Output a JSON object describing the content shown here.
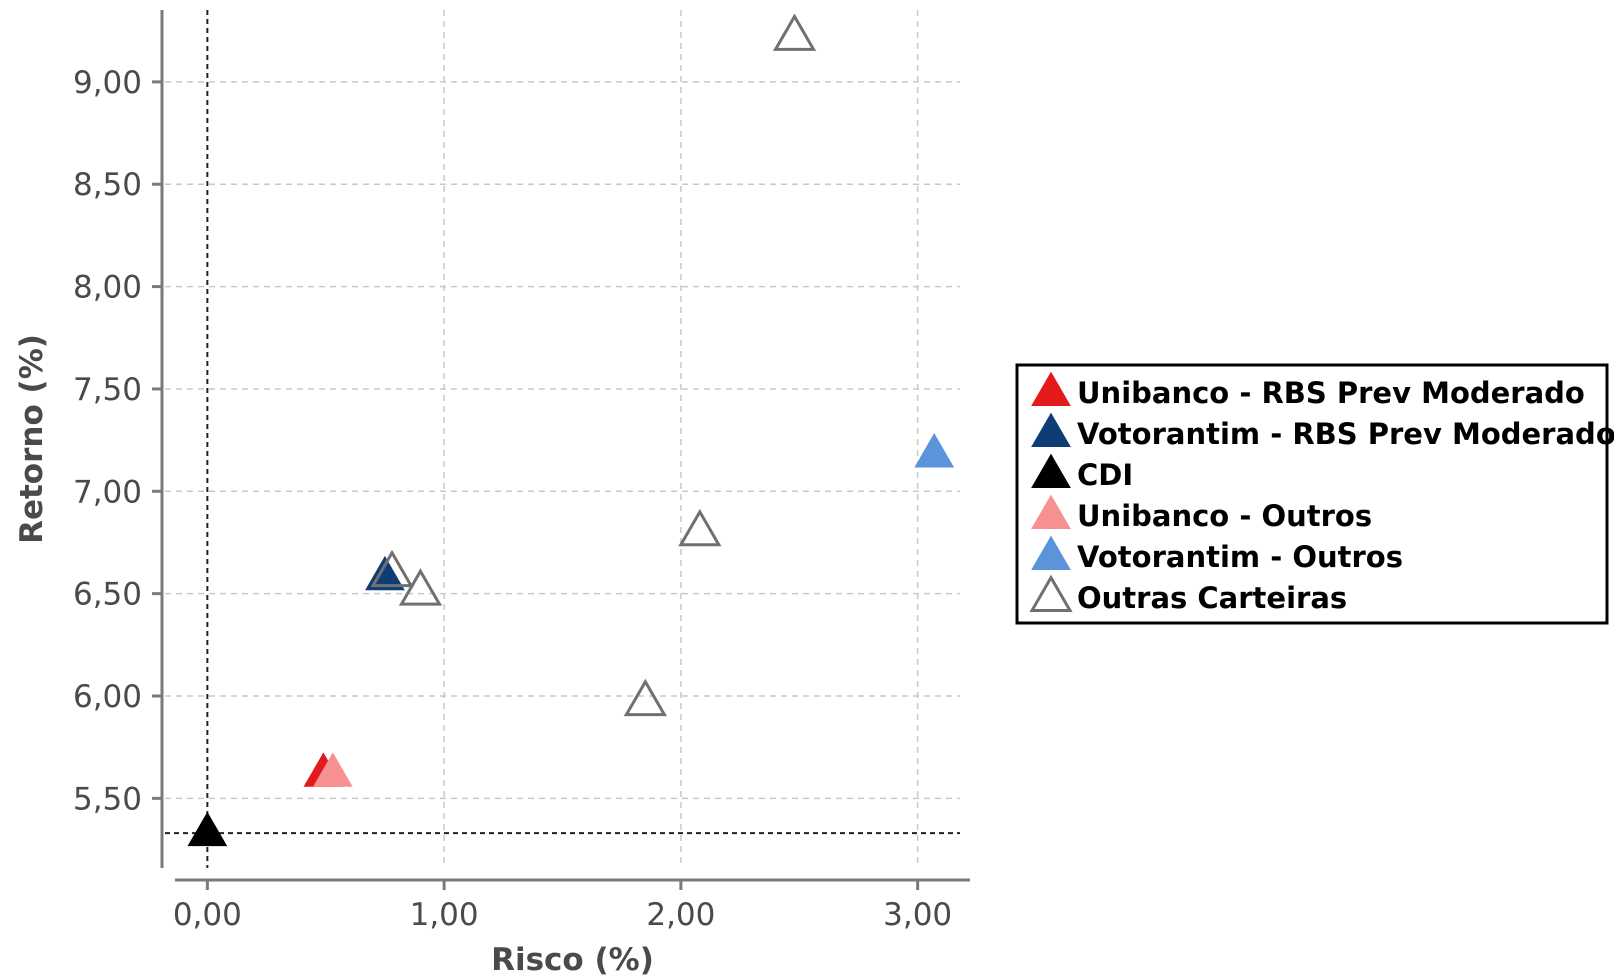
{
  "chart_data": {
    "type": "scatter",
    "xlabel": "Risco (%)",
    "ylabel": "Retorno (%)",
    "xlim": [
      -0.2,
      3.2
    ],
    "ylim": [
      5.15,
      9.4
    ],
    "x_ticks": [
      0,
      1,
      2,
      3
    ],
    "x_tick_labels": [
      "0,00",
      "1,00",
      "2,00",
      "3,00"
    ],
    "y_ticks": [
      5.5,
      6.0,
      6.5,
      7.0,
      7.5,
      8.0,
      8.5,
      9.0
    ],
    "y_tick_labels": [
      "5,50",
      "6,00",
      "6,50",
      "7,00",
      "7,50",
      "8,00",
      "8,50",
      "9,00"
    ],
    "grid": true,
    "legend_position": "right",
    "reference_lines": {
      "x": 0.0,
      "y": 5.33
    },
    "series": [
      {
        "name": "Unibanco - RBS Prev Moderado",
        "color": "#e31a1c",
        "filled": true,
        "points": [
          {
            "x": 0.49,
            "y": 5.62
          }
        ]
      },
      {
        "name": "Votorantim - RBS Prev Moderado",
        "color": "#0e3d75",
        "filled": true,
        "points": [
          {
            "x": 0.75,
            "y": 6.58
          }
        ]
      },
      {
        "name": "CDI",
        "color": "#000000",
        "filled": true,
        "points": [
          {
            "x": 0.0,
            "y": 5.33
          }
        ]
      },
      {
        "name": "Unibanco - Outros",
        "color": "#f79191",
        "filled": true,
        "points": [
          {
            "x": 0.53,
            "y": 5.62
          }
        ]
      },
      {
        "name": "Votorantim - Outros",
        "color": "#5b94db",
        "filled": true,
        "points": [
          {
            "x": 3.07,
            "y": 7.18
          }
        ]
      },
      {
        "name": "Outras Carteiras",
        "color": "#707070",
        "filled": false,
        "points": [
          {
            "x": 2.48,
            "y": 9.22
          },
          {
            "x": 2.08,
            "y": 6.8
          },
          {
            "x": 0.78,
            "y": 6.6
          },
          {
            "x": 0.9,
            "y": 6.51
          },
          {
            "x": 1.85,
            "y": 5.97
          }
        ]
      }
    ]
  }
}
